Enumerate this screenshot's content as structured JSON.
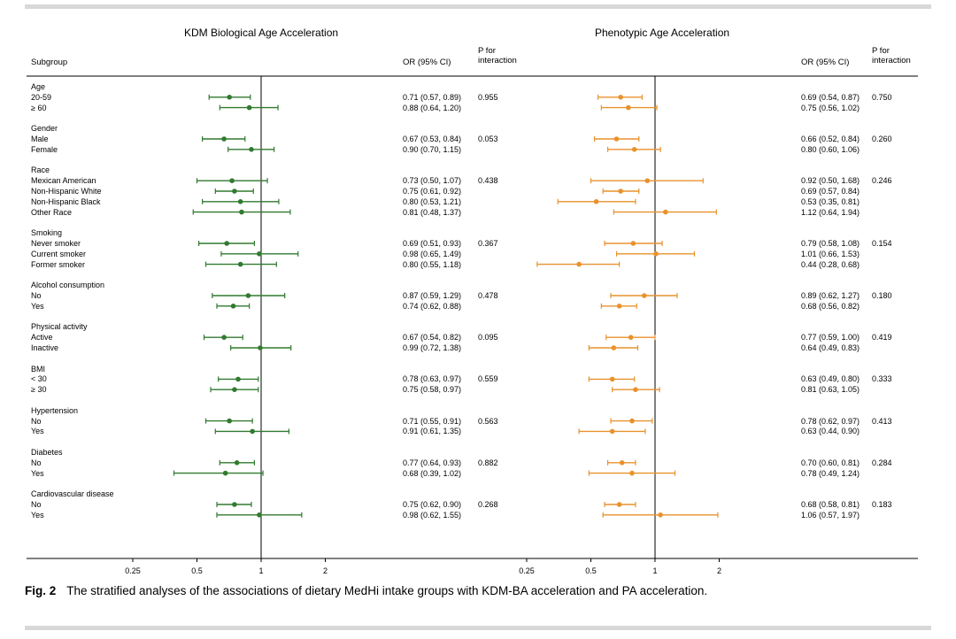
{
  "figure": {
    "caption_label": "Fig. 2",
    "caption_text": "The stratified analyses of the associations of dietary MedHi intake groups with KDM-BA acceleration and PA acceleration."
  },
  "chart_data": {
    "type": "forest",
    "x_scale": "log2",
    "x_ticks": [
      "0.25",
      "0.5",
      "1",
      "2"
    ],
    "xlim": [
      0.2,
      3.4
    ],
    "reference_value": 1,
    "subgroup_header": "Subgroup",
    "panels": [
      {
        "title": "KDM Biological Age Acceleration",
        "or_header": "OR (95% CI)",
        "p_header": "P for interaction",
        "color": "#317a2f"
      },
      {
        "title": "Phenotypic Age Acceleration",
        "or_header": "OR (95% CI)",
        "p_header": "P for interaction",
        "color": "#e8922d"
      }
    ],
    "groups": [
      {
        "name": "Age",
        "rows": [
          {
            "label": "20-59",
            "kdm": {
              "or": 0.71,
              "lo": 0.57,
              "hi": 0.89
            },
            "kdm_p": "0.955",
            "pa": {
              "or": 0.69,
              "lo": 0.54,
              "hi": 0.87
            },
            "pa_p": "0.750"
          },
          {
            "label": "≥ 60",
            "kdm": {
              "or": 0.88,
              "lo": 0.64,
              "hi": 1.2
            },
            "pa": {
              "or": 0.75,
              "lo": 0.56,
              "hi": 1.02
            }
          }
        ]
      },
      {
        "name": "Gender",
        "rows": [
          {
            "label": "Male",
            "kdm": {
              "or": 0.67,
              "lo": 0.53,
              "hi": 0.84
            },
            "kdm_p": "0.053",
            "pa": {
              "or": 0.66,
              "lo": 0.52,
              "hi": 0.84
            },
            "pa_p": "0.260"
          },
          {
            "label": "Female",
            "kdm": {
              "or": 0.9,
              "lo": 0.7,
              "hi": 1.15
            },
            "pa": {
              "or": 0.8,
              "lo": 0.6,
              "hi": 1.06
            }
          }
        ]
      },
      {
        "name": "Race",
        "rows": [
          {
            "label": "Mexican American",
            "kdm": {
              "or": 0.73,
              "lo": 0.5,
              "hi": 1.07
            },
            "kdm_p": "0.438",
            "pa": {
              "or": 0.92,
              "lo": 0.5,
              "hi": 1.68
            },
            "pa_p": "0.246"
          },
          {
            "label": "Non-Hispanic White",
            "kdm": {
              "or": 0.75,
              "lo": 0.61,
              "hi": 0.92
            },
            "pa": {
              "or": 0.69,
              "lo": 0.57,
              "hi": 0.84
            }
          },
          {
            "label": "Non-Hispanic Black",
            "kdm": {
              "or": 0.8,
              "lo": 0.53,
              "hi": 1.21
            },
            "pa": {
              "or": 0.53,
              "lo": 0.35,
              "hi": 0.81
            }
          },
          {
            "label": "Other Race",
            "kdm": {
              "or": 0.81,
              "lo": 0.48,
              "hi": 1.37
            },
            "pa": {
              "or": 1.12,
              "lo": 0.64,
              "hi": 1.94
            }
          }
        ]
      },
      {
        "name": "Smoking",
        "rows": [
          {
            "label": "Never smoker",
            "kdm": {
              "or": 0.69,
              "lo": 0.51,
              "hi": 0.93
            },
            "kdm_p": "0.367",
            "pa": {
              "or": 0.79,
              "lo": 0.58,
              "hi": 1.08
            },
            "pa_p": "0.154"
          },
          {
            "label": "Current smoker",
            "kdm": {
              "or": 0.98,
              "lo": 0.65,
              "hi": 1.49
            },
            "pa": {
              "or": 1.01,
              "lo": 0.66,
              "hi": 1.53
            }
          },
          {
            "label": "Former smoker",
            "kdm": {
              "or": 0.8,
              "lo": 0.55,
              "hi": 1.18
            },
            "pa": {
              "or": 0.44,
              "lo": 0.28,
              "hi": 0.68
            }
          }
        ]
      },
      {
        "name": "Alcohol consumption",
        "rows": [
          {
            "label": "No",
            "kdm": {
              "or": 0.87,
              "lo": 0.59,
              "hi": 1.29
            },
            "kdm_p": "0.478",
            "pa": {
              "or": 0.89,
              "lo": 0.62,
              "hi": 1.27
            },
            "pa_p": "0.180"
          },
          {
            "label": "Yes",
            "kdm": {
              "or": 0.74,
              "lo": 0.62,
              "hi": 0.88
            },
            "pa": {
              "or": 0.68,
              "lo": 0.56,
              "hi": 0.82
            }
          }
        ]
      },
      {
        "name": "Physical activity",
        "rows": [
          {
            "label": "Active",
            "kdm": {
              "or": 0.67,
              "lo": 0.54,
              "hi": 0.82
            },
            "kdm_p": "0.095",
            "pa": {
              "or": 0.77,
              "lo": 0.59,
              "hi": 1.0
            },
            "pa_p": "0.419"
          },
          {
            "label": "Inactive",
            "kdm": {
              "or": 0.99,
              "lo": 0.72,
              "hi": 1.38
            },
            "pa": {
              "or": 0.64,
              "lo": 0.49,
              "hi": 0.83
            }
          }
        ]
      },
      {
        "name": "BMI",
        "rows": [
          {
            "label": "< 30",
            "kdm": {
              "or": 0.78,
              "lo": 0.63,
              "hi": 0.97
            },
            "kdm_p": "0.559",
            "pa": {
              "or": 0.63,
              "lo": 0.49,
              "hi": 0.8
            },
            "pa_p": "0.333"
          },
          {
            "label": "≥ 30",
            "kdm": {
              "or": 0.75,
              "lo": 0.58,
              "hi": 0.97
            },
            "pa": {
              "or": 0.81,
              "lo": 0.63,
              "hi": 1.05
            }
          }
        ]
      },
      {
        "name": "Hypertension",
        "rows": [
          {
            "label": "No",
            "kdm": {
              "or": 0.71,
              "lo": 0.55,
              "hi": 0.91
            },
            "kdm_p": "0.563",
            "pa": {
              "or": 0.78,
              "lo": 0.62,
              "hi": 0.97
            },
            "pa_p": "0.413"
          },
          {
            "label": "Yes",
            "kdm": {
              "or": 0.91,
              "lo": 0.61,
              "hi": 1.35
            },
            "pa": {
              "or": 0.63,
              "lo": 0.44,
              "hi": 0.9
            }
          }
        ]
      },
      {
        "name": "Diabetes",
        "rows": [
          {
            "label": "No",
            "kdm": {
              "or": 0.77,
              "lo": 0.64,
              "hi": 0.93
            },
            "kdm_p": "0.882",
            "pa": {
              "or": 0.7,
              "lo": 0.6,
              "hi": 0.81
            },
            "pa_p": "0.284"
          },
          {
            "label": "Yes",
            "kdm": {
              "or": 0.68,
              "lo": 0.39,
              "hi": 1.02
            },
            "pa": {
              "or": 0.78,
              "lo": 0.49,
              "hi": 1.24
            }
          }
        ]
      },
      {
        "name": "Cardiovascular disease",
        "rows": [
          {
            "label": "No",
            "kdm": {
              "or": 0.75,
              "lo": 0.62,
              "hi": 0.9
            },
            "kdm_p": "0.268",
            "pa": {
              "or": 0.68,
              "lo": 0.58,
              "hi": 0.81
            },
            "pa_p": "0.183"
          },
          {
            "label": "Yes",
            "kdm": {
              "or": 0.98,
              "lo": 0.62,
              "hi": 1.55
            },
            "pa": {
              "or": 1.06,
              "lo": 0.57,
              "hi": 1.97
            }
          }
        ]
      }
    ]
  }
}
